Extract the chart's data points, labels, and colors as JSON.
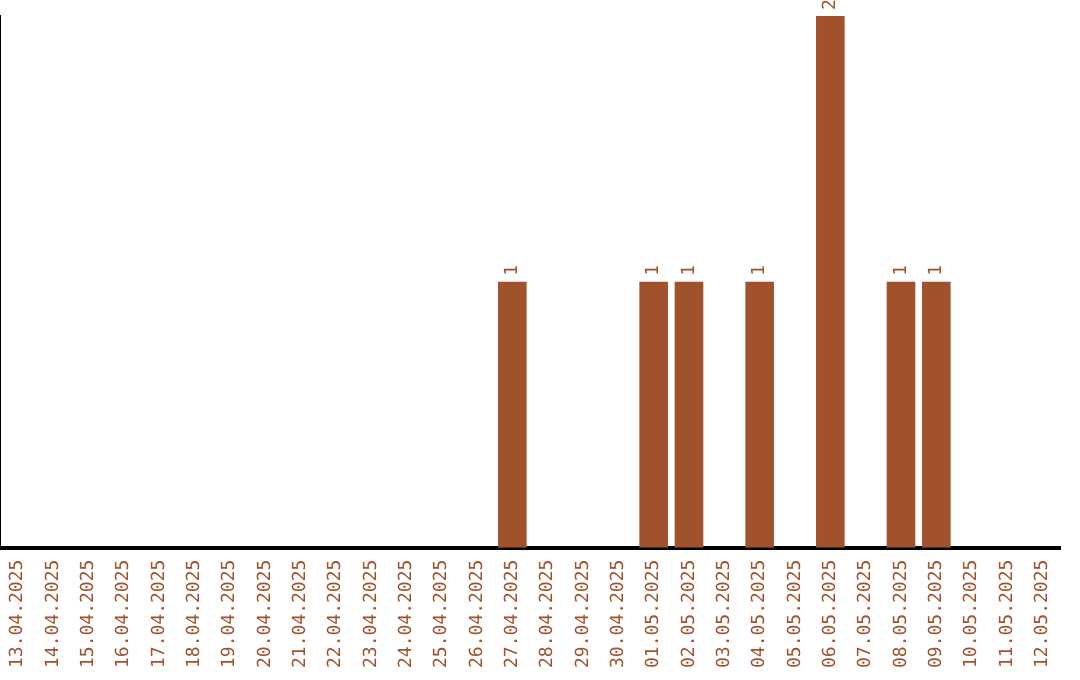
{
  "chart_data": {
    "type": "bar",
    "categories": [
      "13.04.2025",
      "14.04.2025",
      "15.04.2025",
      "16.04.2025",
      "17.04.2025",
      "18.04.2025",
      "19.04.2025",
      "20.04.2025",
      "21.04.2025",
      "22.04.2025",
      "23.04.2025",
      "24.04.2025",
      "25.04.2025",
      "26.04.2025",
      "27.04.2025",
      "28.04.2025",
      "29.04.2025",
      "30.04.2025",
      "01.05.2025",
      "02.05.2025",
      "03.05.2025",
      "04.05.2025",
      "05.05.2025",
      "06.05.2025",
      "07.05.2025",
      "08.05.2025",
      "09.05.2025",
      "10.05.2025",
      "11.05.2025",
      "12.05.2025"
    ],
    "values": [
      null,
      null,
      null,
      null,
      null,
      null,
      null,
      null,
      null,
      null,
      null,
      null,
      null,
      null,
      1,
      null,
      null,
      null,
      1,
      1,
      null,
      1,
      null,
      2,
      null,
      1,
      1,
      null,
      null,
      null
    ],
    "data_labels": true,
    "color": "#a0522d",
    "ylim": [
      0,
      2
    ],
    "grid": false,
    "legend": false,
    "tick_labels": "x"
  }
}
